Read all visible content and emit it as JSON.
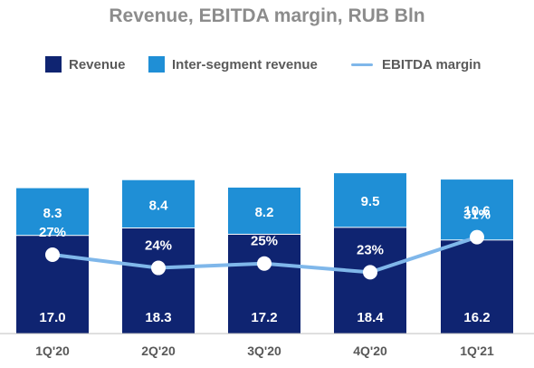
{
  "chart_data": {
    "type": "bar",
    "title": "Revenue, EBITDA margin, RUB Bln",
    "categories": [
      "1Q'20",
      "2Q'20",
      "3Q'20",
      "4Q'20",
      "1Q'21"
    ],
    "series": [
      {
        "name": "Revenue",
        "kind": "stacked-bar",
        "values": [
          17.0,
          18.3,
          17.2,
          18.4,
          16.2
        ],
        "labels": [
          "17.0",
          "18.3",
          "17.2",
          "18.4",
          "16.2"
        ],
        "color": "#0f2471"
      },
      {
        "name": "Inter-segment revenue",
        "kind": "stacked-bar",
        "values": [
          8.3,
          8.4,
          8.2,
          9.5,
          10.6
        ],
        "labels": [
          "8.3",
          "8.4",
          "8.2",
          "9.5",
          "10.6"
        ],
        "color": "#1f8fd6"
      },
      {
        "name": "EBITDA margin",
        "kind": "line",
        "values": [
          27,
          24,
          25,
          23,
          31
        ],
        "labels": [
          "27%",
          "24%",
          "25%",
          "23%",
          "31%"
        ],
        "unit": "%",
        "color": "#7fb7ea"
      }
    ],
    "legend_position": "top",
    "grid": false
  }
}
